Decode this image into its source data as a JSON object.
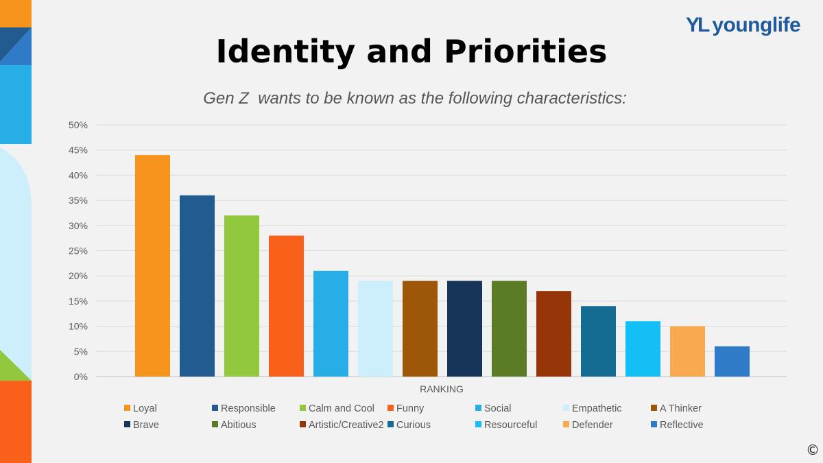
{
  "slide": {
    "title": "Identity and Priorities",
    "subtitle": "Gen Z  wants to be known as the following characteristics:",
    "logo_text": "younglife",
    "logo_mark": "YL",
    "copyright_symbol": "©"
  },
  "colors": {
    "background": "#f2f2f2",
    "brand_blue": "#1f5a9c",
    "grid": "#d9d9d9",
    "axis_text": "#595959"
  },
  "chart_data": {
    "type": "bar",
    "xlabel": "RANKING",
    "ylabel": "",
    "ylim": [
      0,
      50
    ],
    "yticks": [
      "0%",
      "5%",
      "10%",
      "15%",
      "20%",
      "25%",
      "30%",
      "35%",
      "40%",
      "45%",
      "50%"
    ],
    "grid": true,
    "legend_placement": "bottom",
    "series": [
      {
        "name": "Loyal",
        "value": 44,
        "color": "#f7941d"
      },
      {
        "name": "Responsible",
        "value": 36,
        "color": "#225b8f"
      },
      {
        "name": "Calm and Cool",
        "value": 32,
        "color": "#92c83e"
      },
      {
        "name": "Funny",
        "value": 28,
        "color": "#f9611a"
      },
      {
        "name": "Social",
        "value": 21,
        "color": "#27aee6"
      },
      {
        "name": "Empathetic",
        "value": 19,
        "color": "#cdeefb"
      },
      {
        "name": "A Thinker",
        "value": 19,
        "color": "#9e5708"
      },
      {
        "name": "Brave",
        "value": 19,
        "color": "#173459"
      },
      {
        "name": "Abitious",
        "value": 19,
        "color": "#5b7b26"
      },
      {
        "name": "Artistic/Creative2",
        "value": 17,
        "color": "#963508"
      },
      {
        "name": "Curious",
        "value": 14,
        "color": "#146c92"
      },
      {
        "name": "Resourceful",
        "value": 11,
        "color": "#14bff5"
      },
      {
        "name": "Defender",
        "value": 10,
        "color": "#f9aa50"
      },
      {
        "name": "Reflective",
        "value": 6,
        "color": "#2f7bc8"
      }
    ]
  }
}
